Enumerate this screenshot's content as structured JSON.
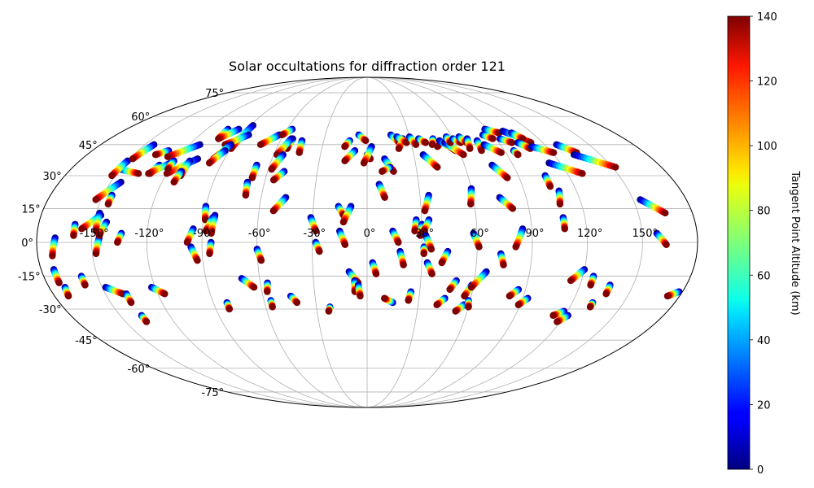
{
  "chart_data": {
    "type": "scatter",
    "projection": "mollweide",
    "title": "Solar occultations for diffraction order 121",
    "longitude_ticks": [
      {
        "value": -150,
        "label": "-150°"
      },
      {
        "value": -120,
        "label": "-120°"
      },
      {
        "value": -90,
        "label": "-90°"
      },
      {
        "value": -60,
        "label": "-60°"
      },
      {
        "value": -30,
        "label": "-30°"
      },
      {
        "value": 0,
        "label": "0°"
      },
      {
        "value": 30,
        "label": "30°"
      },
      {
        "value": 60,
        "label": "60°"
      },
      {
        "value": 90,
        "label": "90°"
      },
      {
        "value": 120,
        "label": "120°"
      },
      {
        "value": 150,
        "label": "150°"
      }
    ],
    "latitude_ticks": [
      {
        "value": 75,
        "label": "75°"
      },
      {
        "value": 60,
        "label": "60°"
      },
      {
        "value": 45,
        "label": "45°"
      },
      {
        "value": 30,
        "label": "30°"
      },
      {
        "value": 15,
        "label": "15°"
      },
      {
        "value": 0,
        "label": "0°"
      },
      {
        "value": -15,
        "label": "-15°"
      },
      {
        "value": -30,
        "label": "-30°"
      },
      {
        "value": -45,
        "label": "-45°"
      },
      {
        "value": -60,
        "label": "-60°"
      },
      {
        "value": -75,
        "label": "-75°"
      }
    ],
    "grid": true,
    "colorbar": {
      "label": "Tangent Point Altitude (km)",
      "range": [
        0,
        140
      ],
      "colormap": "jet",
      "ticks": [
        {
          "value": 0,
          "label": "0"
        },
        {
          "value": 20,
          "label": "20"
        },
        {
          "value": 40,
          "label": "40"
        },
        {
          "value": 60,
          "label": "60"
        },
        {
          "value": 80,
          "label": "80"
        },
        {
          "value": 100,
          "label": "100"
        },
        {
          "value": 120,
          "label": "120"
        },
        {
          "value": 140,
          "label": "140"
        }
      ]
    },
    "occultation_tracks": [
      {
        "lon_low": -170,
        "lat_low": 2,
        "lon_high": -172,
        "lat_high": -6
      },
      {
        "lon_low": -173,
        "lat_low": -12,
        "lon_high": -173,
        "lat_high": -18
      },
      {
        "lon_low": -171,
        "lat_low": -20,
        "lon_high": -172,
        "lat_high": -24
      },
      {
        "lon_low": -159,
        "lat_low": -15,
        "lon_high": -159,
        "lat_high": -19
      },
      {
        "lon_low": -160,
        "lat_low": 8,
        "lon_high": -160,
        "lat_high": 3
      },
      {
        "lon_low": -147,
        "lat_low": 12,
        "lon_high": -156,
        "lat_high": 6
      },
      {
        "lon_low": -148,
        "lat_low": 13,
        "lon_high": -148,
        "lat_high": 5
      },
      {
        "lon_low": -146,
        "lat_low": 2,
        "lon_high": -148,
        "lat_high": -5
      },
      {
        "lon_low": -143,
        "lat_low": 9,
        "lon_high": -146,
        "lat_high": 3
      },
      {
        "lon_low": -148,
        "lat_low": -20,
        "lon_high": -140,
        "lat_high": -23
      },
      {
        "lon_low": -138,
        "lat_low": -23,
        "lon_high": -138,
        "lat_high": -27
      },
      {
        "lon_low": -137,
        "lat_low": -33,
        "lon_high": -137,
        "lat_high": -36
      },
      {
        "lon_low": -134,
        "lat_low": 4,
        "lon_high": -136,
        "lat_high": 0
      },
      {
        "lon_low": -122,
        "lat_low": -20,
        "lon_high": -116,
        "lat_high": -23
      },
      {
        "lon_low": -144,
        "lat_low": 27,
        "lon_high": -153,
        "lat_high": 19
      },
      {
        "lon_low": -145,
        "lat_low": 21,
        "lon_high": -145,
        "lat_high": 17
      },
      {
        "lon_low": -150,
        "lat_low": 33,
        "lon_high": -137,
        "lat_high": 31
      },
      {
        "lon_low": -150,
        "lat_low": 37,
        "lon_high": -152,
        "lat_high": 30
      },
      {
        "lon_low": -144,
        "lat_low": 45,
        "lon_high": -148,
        "lat_high": 38
      },
      {
        "lon_low": -130,
        "lat_low": 42,
        "lon_high": -136,
        "lat_high": 40
      },
      {
        "lon_low": -128,
        "lat_low": 35,
        "lon_high": -130,
        "lat_high": 31
      },
      {
        "lon_low": -122,
        "lat_low": 36,
        "lon_high": -131,
        "lat_high": 31
      },
      {
        "lon_low": -113,
        "lat_low": 45,
        "lon_high": -127,
        "lat_high": 39
      },
      {
        "lon_low": -107,
        "lat_low": 38,
        "lon_high": -120,
        "lat_high": 31
      },
      {
        "lon_low": -121,
        "lat_low": 37,
        "lon_high": -121,
        "lat_high": 33
      },
      {
        "lon_low": -111,
        "lat_low": 37,
        "lon_high": -111,
        "lat_high": 30
      },
      {
        "lon_low": -112,
        "lat_low": 32,
        "lon_high": -113,
        "lat_high": 27
      },
      {
        "lon_low": -104,
        "lat_low": 53,
        "lon_high": -104,
        "lat_high": 48
      },
      {
        "lon_low": -96,
        "lat_low": 53,
        "lon_high": -104,
        "lat_high": 48
      },
      {
        "lon_low": -88,
        "lat_low": 55,
        "lon_high": -90,
        "lat_high": 43
      },
      {
        "lon_low": -85,
        "lat_low": 50,
        "lon_high": -96,
        "lat_high": 45
      },
      {
        "lon_low": -92,
        "lat_low": 45,
        "lon_high": -97,
        "lat_high": 38
      },
      {
        "lon_low": -93,
        "lat_low": 42,
        "lon_high": -98,
        "lat_high": 36
      },
      {
        "lon_low": -90,
        "lat_low": 16,
        "lon_high": -89,
        "lat_high": 10
      },
      {
        "lon_low": -95,
        "lat_low": 6,
        "lon_high": -98,
        "lat_high": 0
      },
      {
        "lon_low": -96,
        "lat_low": -2,
        "lon_high": -93,
        "lat_high": -8
      },
      {
        "lon_low": -85,
        "lat_low": 11,
        "lon_high": -88,
        "lat_high": 5
      },
      {
        "lon_low": -84,
        "lat_low": 12,
        "lon_high": -85,
        "lat_high": 4
      },
      {
        "lon_low": -85,
        "lat_low": 0,
        "lon_high": -86,
        "lat_high": -5
      },
      {
        "lon_low": -82,
        "lat_low": -27,
        "lon_high": -82,
        "lat_high": -30
      },
      {
        "lon_low": -68,
        "lat_low": 35,
        "lon_high": -68,
        "lat_high": 29
      },
      {
        "lon_low": -70,
        "lat_low": 27,
        "lon_high": -69,
        "lat_high": 21
      },
      {
        "lon_low": -63,
        "lat_low": 50,
        "lon_high": -72,
        "lat_high": 45
      },
      {
        "lon_low": -56,
        "lat_low": 53,
        "lon_high": -61,
        "lat_high": 50
      },
      {
        "lon_low": -52,
        "lat_low": 48,
        "lon_high": -53,
        "lat_high": 43
      },
      {
        "lon_low": -53,
        "lat_low": 48,
        "lon_high": -58,
        "lat_high": 40
      },
      {
        "lon_low": -54,
        "lat_low": 40,
        "lon_high": -58,
        "lat_high": 33
      },
      {
        "lon_low": -50,
        "lat_low": 32,
        "lon_high": -55,
        "lat_high": 28
      },
      {
        "lon_low": -45,
        "lat_low": 47,
        "lon_high": -44,
        "lat_high": 41
      },
      {
        "lon_low": -46,
        "lat_low": 20,
        "lon_high": -52,
        "lat_high": 14
      },
      {
        "lon_low": -60,
        "lat_low": -3,
        "lon_high": -58,
        "lat_high": -8
      },
      {
        "lon_low": -70,
        "lat_low": -16,
        "lon_high": -64,
        "lat_high": -20
      },
      {
        "lon_low": -56,
        "lat_low": -18,
        "lon_high": -57,
        "lat_high": -22
      },
      {
        "lon_low": -56,
        "lat_low": -26,
        "lon_high": -56,
        "lat_high": -29
      },
      {
        "lon_low": -44,
        "lat_low": -24,
        "lon_high": -41,
        "lat_high": -27
      },
      {
        "lon_low": -31,
        "lat_low": 11,
        "lon_high": -28,
        "lat_high": 5
      },
      {
        "lon_low": -28,
        "lat_low": 0,
        "lon_high": -26,
        "lat_high": -4
      },
      {
        "lon_low": -22,
        "lat_low": -29,
        "lon_high": -23,
        "lat_high": -31
      },
      {
        "lon_low": -16,
        "lat_low": 16,
        "lon_high": -13,
        "lat_high": 12
      },
      {
        "lon_low": -9,
        "lat_low": 16,
        "lon_high": -13,
        "lat_high": 9
      },
      {
        "lon_low": -15,
        "lat_low": 5,
        "lon_high": -12,
        "lat_high": -1
      },
      {
        "lon_low": -10,
        "lat_low": -13,
        "lon_high": -5,
        "lat_high": -18
      },
      {
        "lon_low": -7,
        "lat_low": -17,
        "lon_high": -7,
        "lat_high": -22
      },
      {
        "lon_low": -5,
        "lat_low": -19,
        "lon_high": -4,
        "lat_high": -24
      },
      {
        "lon_low": -12,
        "lat_low": 47,
        "lon_high": -15,
        "lat_high": 44
      },
      {
        "lon_low": -8,
        "lat_low": 42,
        "lon_high": -14,
        "lat_high": 37
      },
      {
        "lon_low": -6,
        "lat_low": 50,
        "lon_high": -1,
        "lat_high": 47
      },
      {
        "lon_low": 0,
        "lat_low": 40,
        "lon_high": 2,
        "lat_high": 38
      },
      {
        "lon_low": 3,
        "lat_low": 44,
        "lon_high": -2,
        "lat_high": 36
      },
      {
        "lon_low": 3,
        "lat_low": -9,
        "lon_high": 5,
        "lat_high": -14
      },
      {
        "lon_low": 7,
        "lat_low": 26,
        "lon_high": 10,
        "lat_high": 20
      },
      {
        "lon_low": 11,
        "lat_low": 38,
        "lon_high": 16,
        "lat_high": 32
      },
      {
        "lon_low": 14,
        "lat_low": 5,
        "lon_high": 17,
        "lat_high": 0
      },
      {
        "lon_low": 14,
        "lat_low": 34,
        "lon_high": 9,
        "lat_high": 32
      },
      {
        "lon_low": 18,
        "lat_low": -4,
        "lon_high": 20,
        "lat_high": -10
      },
      {
        "lon_low": 15,
        "lat_low": -27,
        "lon_high": 10,
        "lat_high": -25
      },
      {
        "lon_low": 17,
        "lat_low": 50,
        "lon_high": 22,
        "lat_high": 46
      },
      {
        "lon_low": 25,
        "lat_low": 48,
        "lon_high": 21,
        "lat_high": 43
      },
      {
        "lon_low": 21,
        "lat_low": 49,
        "lon_high": 27,
        "lat_high": 46
      },
      {
        "lon_low": 25,
        "lat_low": -22,
        "lon_high": 24,
        "lat_high": -26
      },
      {
        "lon_low": 27,
        "lat_low": 10,
        "lon_high": 26,
        "lat_high": 5
      },
      {
        "lon_low": 30,
        "lat_low": 8,
        "lon_high": 29,
        "lat_high": 3
      },
      {
        "lon_low": 34,
        "lat_low": 10,
        "lon_high": 31,
        "lat_high": 5
      },
      {
        "lon_low": 30,
        "lat_low": 49,
        "lon_high": 33,
        "lat_high": 45
      },
      {
        "lon_low": 31,
        "lat_low": -2,
        "lon_high": 31,
        "lat_high": -5
      },
      {
        "lon_low": 32,
        "lat_low": 3,
        "lon_high": 35,
        "lat_high": -3
      },
      {
        "lon_low": 33,
        "lat_low": -9,
        "lon_high": 36,
        "lat_high": -14
      },
      {
        "lon_low": 36,
        "lat_low": 48,
        "lon_high": 40,
        "lat_high": 46
      },
      {
        "lon_low": 35,
        "lat_low": 21,
        "lon_high": 32,
        "lat_high": 14
      },
      {
        "lon_low": 36,
        "lat_low": 40,
        "lon_high": 43,
        "lat_high": 34
      },
      {
        "lon_low": 44,
        "lat_low": -4,
        "lon_high": 41,
        "lat_high": -9
      },
      {
        "lon_low": 46,
        "lat_low": 48,
        "lon_high": 44,
        "lat_high": 45
      },
      {
        "lon_low": 45,
        "lat_low": -25,
        "lon_high": 41,
        "lat_high": -28
      },
      {
        "lon_low": 50,
        "lat_low": -17,
        "lon_high": 47,
        "lat_high": -21
      },
      {
        "lon_low": 51,
        "lat_low": 46,
        "lon_high": 47,
        "lat_high": 44
      },
      {
        "lon_low": 50,
        "lat_low": 47,
        "lon_high": 58,
        "lat_high": 42
      },
      {
        "lon_low": 53,
        "lat_low": 46,
        "lon_high": 62,
        "lat_high": 40
      },
      {
        "lon_low": 56,
        "lat_low": 49,
        "lon_high": 57,
        "lat_high": 46
      },
      {
        "lon_low": 60,
        "lat_low": 48,
        "lon_high": 64,
        "lat_high": 46
      },
      {
        "lon_low": 57,
        "lat_low": -28,
        "lon_high": 53,
        "lat_high": -31
      },
      {
        "lon_low": 60,
        "lat_low": 24,
        "lon_high": 58,
        "lat_high": 17
      },
      {
        "lon_low": 58,
        "lat_low": 4,
        "lon_high": 61,
        "lat_high": -2
      },
      {
        "lon_low": 59,
        "lat_low": -19,
        "lon_high": 56,
        "lat_high": -24
      },
      {
        "lon_low": 59,
        "lat_low": -26,
        "lon_high": 60,
        "lat_high": -29
      },
      {
        "lon_low": 66,
        "lat_low": -13,
        "lon_high": 59,
        "lat_high": -20
      },
      {
        "lon_low": 65,
        "lat_low": 49,
        "lon_high": 68,
        "lat_high": 46
      },
      {
        "lon_low": 70,
        "lat_low": 48,
        "lon_high": 68,
        "lat_high": 43
      },
      {
        "lon_low": 73,
        "lat_low": -5,
        "lon_high": 75,
        "lat_high": -10
      },
      {
        "lon_low": 76,
        "lat_low": 47,
        "lon_high": 75,
        "lat_high": 42
      },
      {
        "lon_low": 75,
        "lat_low": 20,
        "lon_high": 81,
        "lat_high": 15
      },
      {
        "lon_low": 79,
        "lat_low": 45,
        "lon_high": 87,
        "lat_high": 41
      },
      {
        "lon_low": 77,
        "lat_low": 35,
        "lon_high": 83,
        "lat_high": 29
      },
      {
        "lon_low": 85,
        "lat_low": 6,
        "lon_high": 81,
        "lat_high": -2
      },
      {
        "lon_low": 83,
        "lat_low": 50,
        "lon_high": 88,
        "lat_high": 48
      },
      {
        "lon_low": 86,
        "lat_low": -21,
        "lon_high": 82,
        "lat_high": -24
      },
      {
        "lon_low": 88,
        "lat_low": 53,
        "lon_high": 96,
        "lat_high": 51
      },
      {
        "lon_low": 93,
        "lat_low": 48,
        "lon_high": 99,
        "lat_high": 46
      },
      {
        "lon_low": 96,
        "lat_low": 42,
        "lon_high": 97,
        "lat_high": 40
      },
      {
        "lon_low": 93,
        "lat_low": -25,
        "lon_high": 89,
        "lat_high": -28
      },
      {
        "lon_low": 100,
        "lat_low": 52,
        "lon_high": 112,
        "lat_high": 46
      },
      {
        "lon_low": 105,
        "lat_low": 51,
        "lon_high": 109,
        "lat_high": 48
      },
      {
        "lon_low": 103,
        "lat_low": 46,
        "lon_high": 108,
        "lat_high": 43
      },
      {
        "lon_low": 106,
        "lat_low": 30,
        "lon_high": 106,
        "lat_high": 25
      },
      {
        "lon_low": 110,
        "lat_low": 23,
        "lon_high": 108,
        "lat_high": 17
      },
      {
        "lon_low": 108,
        "lat_low": 11,
        "lon_high": 108,
        "lat_high": 6
      },
      {
        "lon_low": 110,
        "lat_low": 44,
        "lon_high": 121,
        "lat_high": 41
      },
      {
        "lon_low": 113,
        "lat_low": 36,
        "lon_high": 129,
        "lat_high": 31
      },
      {
        "lon_low": 120,
        "lat_low": -12,
        "lon_high": 114,
        "lat_high": -17
      },
      {
        "lon_low": 118,
        "lat_low": -31,
        "lon_high": 113,
        "lat_high": -33
      },
      {
        "lon_low": 126,
        "lat_low": -15,
        "lon_high": 126,
        "lat_high": -19
      },
      {
        "lon_low": 122,
        "lat_low": -33,
        "lon_high": 118,
        "lat_high": -36
      },
      {
        "lon_low": 132,
        "lat_low": -27,
        "lon_high": 132,
        "lat_high": -29
      },
      {
        "lon_low": 137,
        "lat_low": -19,
        "lon_high": 137,
        "lat_high": -23
      },
      {
        "lon_low": 128,
        "lat_low": 45,
        "lon_high": 136,
        "lat_high": 41
      },
      {
        "lon_low": 133,
        "lat_low": 40,
        "lon_high": 152,
        "lat_high": 34
      },
      {
        "lon_low": 154,
        "lat_low": 19,
        "lon_high": 165,
        "lat_high": 13
      },
      {
        "lon_low": 158,
        "lat_low": 4,
        "lon_high": 163,
        "lat_high": -1
      },
      {
        "lon_low": 178,
        "lat_low": -22,
        "lon_high": 173,
        "lat_high": -24
      }
    ]
  }
}
